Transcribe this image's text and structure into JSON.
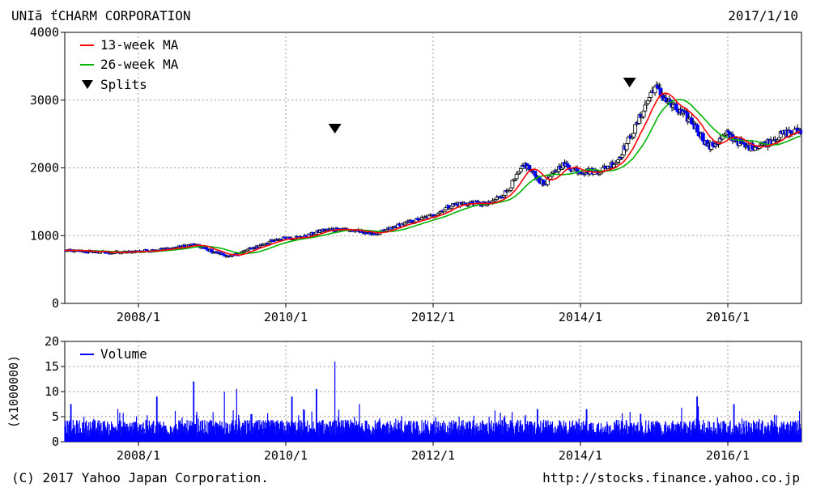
{
  "header": {
    "title": "UNIă ťCHARM CORPORATION",
    "date": "2017/1/10"
  },
  "footer": {
    "copyright": "(C) 2017 Yahoo Japan Corporation.",
    "url": "http://stocks.finance.yahoo.co.jp"
  },
  "colors": {
    "ma13": "#ff0000",
    "ma26": "#00b400",
    "volume": "#0000ff",
    "candle_up_fill": "#ffffff",
    "candle_down_fill": "#0000ff",
    "grid": "#9a9a9a"
  },
  "chart_data": [
    {
      "type": "candlestick",
      "xlim": [
        "2007-01",
        "2017-01"
      ],
      "ylim": [
        0,
        4000
      ],
      "yticks": [
        0,
        1000,
        2000,
        3000,
        4000
      ],
      "xticks": [
        "2008/1",
        "2010/1",
        "2012/1",
        "2014/1",
        "2016/1"
      ],
      "grid": true,
      "legend_position": "top-left",
      "legend": [
        "13-week MA",
        "26-week MA",
        "Splits"
      ],
      "splits": [
        "2010-09",
        "2014-09"
      ],
      "price_series": [
        {
          "x": "2007-01",
          "y": 780
        },
        {
          "x": "2007-04",
          "y": 770
        },
        {
          "x": "2007-07",
          "y": 760
        },
        {
          "x": "2007-10",
          "y": 750
        },
        {
          "x": "2008-01",
          "y": 770
        },
        {
          "x": "2008-04",
          "y": 790
        },
        {
          "x": "2008-07",
          "y": 820
        },
        {
          "x": "2008-10",
          "y": 870
        },
        {
          "x": "2009-01",
          "y": 770
        },
        {
          "x": "2009-04",
          "y": 690
        },
        {
          "x": "2009-07",
          "y": 800
        },
        {
          "x": "2009-10",
          "y": 900
        },
        {
          "x": "2010-01",
          "y": 970
        },
        {
          "x": "2010-04",
          "y": 980
        },
        {
          "x": "2010-07",
          "y": 1080
        },
        {
          "x": "2010-10",
          "y": 1100
        },
        {
          "x": "2011-01",
          "y": 1060
        },
        {
          "x": "2011-04",
          "y": 1030
        },
        {
          "x": "2011-07",
          "y": 1140
        },
        {
          "x": "2011-10",
          "y": 1220
        },
        {
          "x": "2012-01",
          "y": 1300
        },
        {
          "x": "2012-04",
          "y": 1450
        },
        {
          "x": "2012-07",
          "y": 1480
        },
        {
          "x": "2012-10",
          "y": 1460
        },
        {
          "x": "2013-01",
          "y": 1650
        },
        {
          "x": "2013-04",
          "y": 2050
        },
        {
          "x": "2013-07",
          "y": 1750
        },
        {
          "x": "2013-10",
          "y": 2050
        },
        {
          "x": "2014-01",
          "y": 1950
        },
        {
          "x": "2014-04",
          "y": 1950
        },
        {
          "x": "2014-07",
          "y": 2100
        },
        {
          "x": "2014-10",
          "y": 2600
        },
        {
          "x": "2015-01",
          "y": 3200
        },
        {
          "x": "2015-04",
          "y": 2900
        },
        {
          "x": "2015-07",
          "y": 2700
        },
        {
          "x": "2015-10",
          "y": 2300
        },
        {
          "x": "2016-01",
          "y": 2500
        },
        {
          "x": "2016-04",
          "y": 2300
        },
        {
          "x": "2016-07",
          "y": 2350
        },
        {
          "x": "2016-10",
          "y": 2500
        },
        {
          "x": "2017-01",
          "y": 2550
        }
      ]
    },
    {
      "type": "bar",
      "ylabel": "(x1000000)",
      "ylim": [
        0,
        20
      ],
      "yticks": [
        0,
        5,
        10,
        15,
        20
      ],
      "xticks": [
        "2008/1",
        "2010/1",
        "2012/1",
        "2014/1",
        "2016/1"
      ],
      "grid": true,
      "legend_position": "top-left",
      "legend": [
        "Volume"
      ],
      "typical_volume": 3.5,
      "spikes": [
        {
          "x": "2007-02",
          "y": 7.5
        },
        {
          "x": "2008-04",
          "y": 9
        },
        {
          "x": "2008-10",
          "y": 12
        },
        {
          "x": "2009-03",
          "y": 10
        },
        {
          "x": "2009-05",
          "y": 10.5
        },
        {
          "x": "2010-02",
          "y": 9
        },
        {
          "x": "2010-06",
          "y": 10.5
        },
        {
          "x": "2010-09",
          "y": 16
        },
        {
          "x": "2011-01",
          "y": 7.5
        },
        {
          "x": "2013-06",
          "y": 6.5
        },
        {
          "x": "2014-02",
          "y": 6.5
        },
        {
          "x": "2015-08",
          "y": 9
        },
        {
          "x": "2016-02",
          "y": 7.5
        }
      ]
    }
  ]
}
